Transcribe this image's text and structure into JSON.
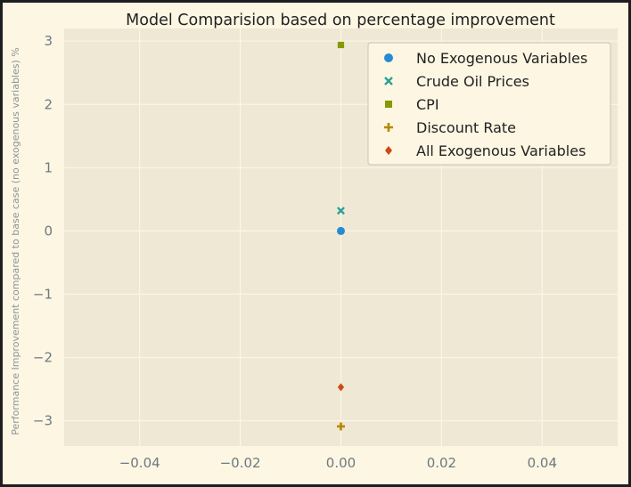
{
  "chart_data": {
    "type": "scatter",
    "title": "Model Comparision based on percentage improvement",
    "xlabel": "",
    "ylabel": "Performance Improvement compared to base case (no exogenous variables) %",
    "xlim": [
      -0.055,
      0.055
    ],
    "ylim": [
      -3.4,
      3.2
    ],
    "xticks": [
      -0.04,
      -0.02,
      0.0,
      0.02,
      0.04
    ],
    "xtick_labels": [
      "−0.04",
      "−0.02",
      "0.00",
      "0.02",
      "0.04"
    ],
    "yticks": [
      -3,
      -2,
      -1,
      0,
      1,
      2,
      3
    ],
    "ytick_labels": [
      "−3",
      "−2",
      "−1",
      "0",
      "1",
      "2",
      "3"
    ],
    "grid": true,
    "legend_position": "top-right",
    "series": [
      {
        "name": "No Exogenous Variables",
        "marker": "circle",
        "color": "#268bd2",
        "x": [
          0.0
        ],
        "y": [
          0.0
        ]
      },
      {
        "name": "Crude Oil Prices",
        "marker": "x",
        "color": "#2aa198",
        "x": [
          0.0
        ],
        "y": [
          0.32
        ]
      },
      {
        "name": "CPI",
        "marker": "square",
        "color": "#859900",
        "x": [
          0.0
        ],
        "y": [
          2.94
        ]
      },
      {
        "name": "Discount Rate",
        "marker": "plus",
        "color": "#b58900",
        "x": [
          0.0
        ],
        "y": [
          -3.09
        ]
      },
      {
        "name": "All Exogenous Variables",
        "marker": "diamond",
        "color": "#cb4b16",
        "x": [
          0.0
        ],
        "y": [
          -2.47
        ]
      }
    ]
  }
}
